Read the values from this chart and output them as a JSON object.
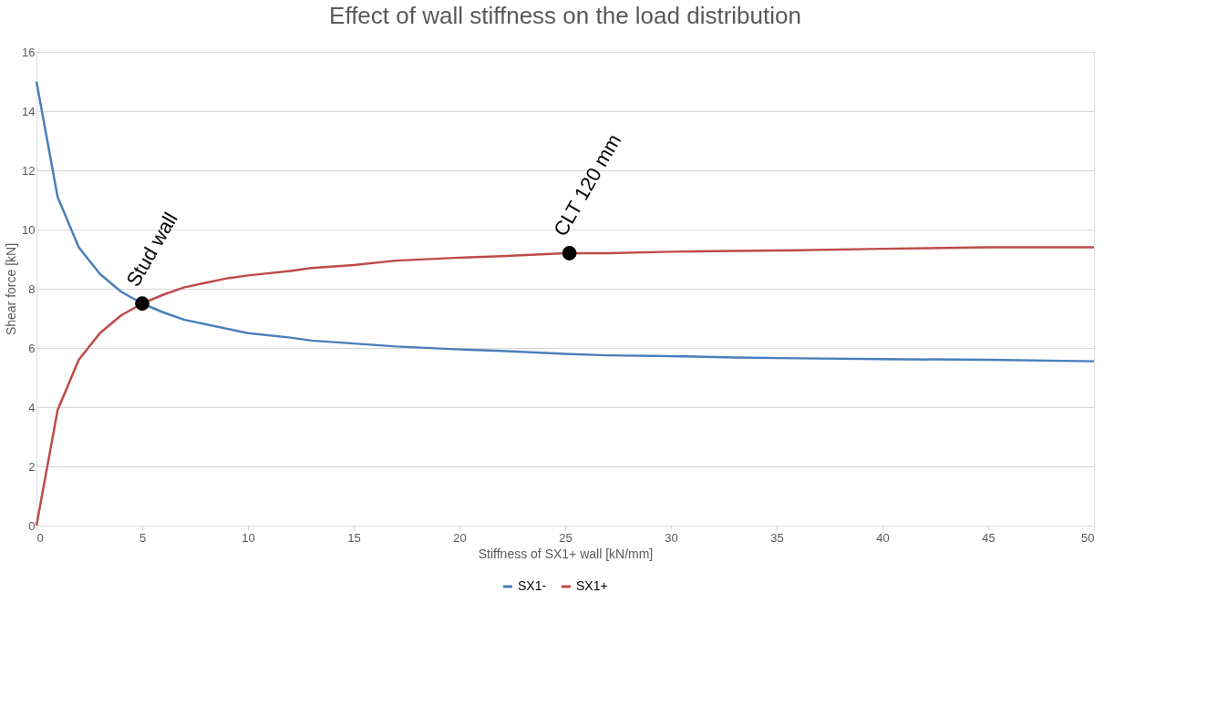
{
  "chart_data": {
    "type": "line",
    "title": "Effect of wall stiffness on the load distribution",
    "xlabel": "Stiffness of SX1+ wall [kN/mm]",
    "ylabel": "Shear force [kN]",
    "x": [
      0,
      1,
      2,
      3,
      4,
      5,
      6,
      7,
      8,
      9,
      10,
      12,
      13,
      15,
      17,
      20,
      22,
      25,
      27,
      30,
      33,
      36,
      40,
      45,
      50
    ],
    "series": [
      {
        "name": "SX1-",
        "color": "#4a7ebb",
        "values": [
          15,
          11.1,
          9.4,
          8.5,
          7.9,
          7.5,
          7.2,
          6.95,
          6.8,
          6.65,
          6.5,
          6.35,
          6.25,
          6.15,
          6.05,
          5.95,
          5.9,
          5.8,
          5.75,
          5.72,
          5.68,
          5.65,
          5.62,
          5.6,
          5.55
        ]
      },
      {
        "name": "SX1+",
        "color": "#be4b48",
        "values": [
          0,
          3.9,
          5.6,
          6.5,
          7.1,
          7.5,
          7.8,
          8.05,
          8.2,
          8.35,
          8.45,
          8.6,
          8.7,
          8.8,
          8.95,
          9.05,
          9.1,
          9.2,
          9.2,
          9.25,
          9.28,
          9.3,
          9.35,
          9.4,
          9.4
        ]
      }
    ],
    "xlim": [
      0,
      50
    ],
    "xticks": [
      0,
      5,
      10,
      15,
      20,
      25,
      30,
      35,
      40,
      45,
      50
    ],
    "ylim": [
      0,
      16
    ],
    "yticks": [
      0,
      2,
      4,
      6,
      8,
      10,
      12,
      14,
      16
    ],
    "grid": "y",
    "legend": "bottom",
    "marker": "none",
    "line_style": "solid",
    "annotations": [
      {
        "text": "Stud wall",
        "x": 5,
        "y": 7.5
      },
      {
        "text": "CLT 120 mm",
        "x": 25.2,
        "y": 9.2
      }
    ]
  }
}
